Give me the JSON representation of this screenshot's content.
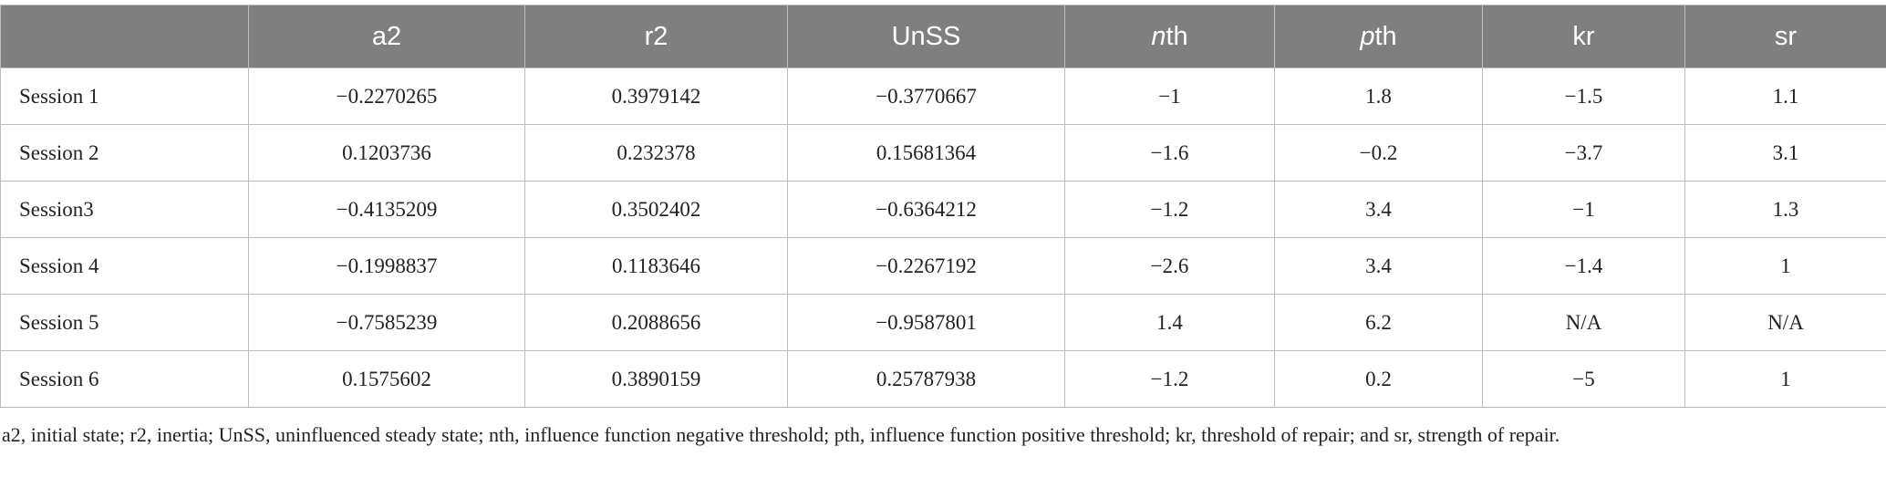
{
  "table": {
    "header": [
      "",
      "a2",
      "r2",
      "UnSS",
      "nth",
      "pth",
      "kr",
      "sr"
    ],
    "rows": [
      [
        "Session 1",
        "−0.2270265",
        "0.3979142",
        "−0.3770667",
        "−1",
        "1.8",
        "−1.5",
        "1.1"
      ],
      [
        "Session 2",
        "0.1203736",
        "0.232378",
        "0.15681364",
        "−1.6",
        "−0.2",
        "−3.7",
        "3.1"
      ],
      [
        "Session3",
        "−0.4135209",
        "0.3502402",
        "−0.6364212",
        "−1.2",
        "3.4",
        "−1",
        "1.3"
      ],
      [
        "Session 4",
        "−0.1998837",
        "0.1183646",
        "−0.2267192",
        "−2.6",
        "3.4",
        "−1.4",
        "1"
      ],
      [
        "Session 5",
        "−0.7585239",
        "0.2088656",
        "−0.9587801",
        "1.4",
        "6.2",
        "N/A",
        "N/A"
      ],
      [
        "Session 6",
        "0.1575602",
        "0.3890159",
        "0.25787938",
        "−1.2",
        "0.2",
        "−5",
        "1"
      ]
    ]
  },
  "footnote": "a2, initial state; r2, inertia; UnSS, uninfluenced steady state; nth, influence function negative threshold; pth, influence function positive threshold; kr, threshold of repair; and sr, strength of repair."
}
